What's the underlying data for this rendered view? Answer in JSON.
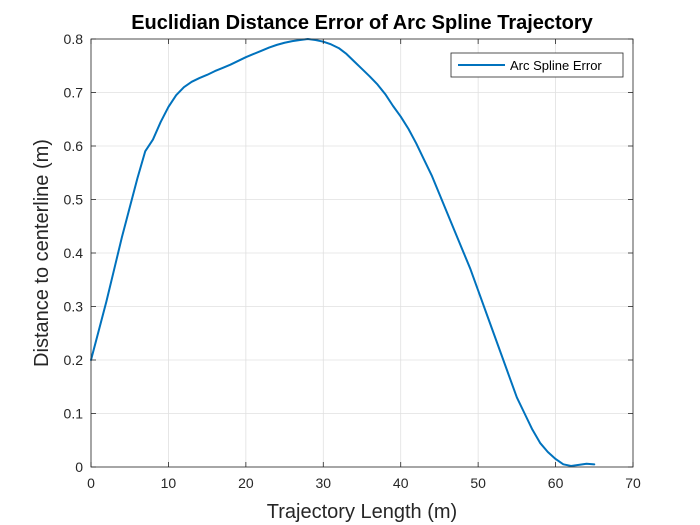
{
  "chart_data": {
    "type": "line",
    "title": "Euclidian Distance Error of Arc Spline Trajectory",
    "xlabel": "Trajectory Length (m)",
    "ylabel": "Distance to centerline (m)",
    "xlim": [
      0,
      70
    ],
    "ylim": [
      0,
      0.8
    ],
    "xticks": [
      0,
      10,
      20,
      30,
      40,
      50,
      60,
      70
    ],
    "xtick_labels": [
      "0",
      "10",
      "20",
      "30",
      "40",
      "50",
      "60",
      "70"
    ],
    "yticks": [
      0,
      0.1,
      0.2,
      0.3,
      0.4,
      0.5,
      0.6,
      0.7,
      0.8
    ],
    "ytick_labels": [
      "0",
      "0.1",
      "0.2",
      "0.3",
      "0.4",
      "0.5",
      "0.6",
      "0.7",
      "0.8"
    ],
    "grid": true,
    "legend_position": "top-right",
    "series": [
      {
        "name": "Arc Spline Error",
        "color": "#0072BD",
        "x": [
          0,
          1,
          2,
          3,
          4,
          5,
          6,
          7,
          8,
          9,
          10,
          11,
          12,
          13,
          14,
          15,
          16,
          17,
          18,
          19,
          20,
          21,
          22,
          23,
          24,
          25,
          26,
          27,
          28,
          29,
          30,
          31,
          32,
          33,
          34,
          35,
          36,
          37,
          38,
          39,
          40,
          41,
          42,
          43,
          44,
          45,
          46,
          47,
          48,
          49,
          50,
          51,
          52,
          53,
          54,
          55,
          56,
          57,
          58,
          59,
          60,
          61,
          62,
          63,
          64,
          65
        ],
        "y": [
          0.2,
          0.255,
          0.31,
          0.37,
          0.43,
          0.485,
          0.54,
          0.59,
          0.612,
          0.645,
          0.673,
          0.695,
          0.71,
          0.72,
          0.727,
          0.733,
          0.74,
          0.746,
          0.752,
          0.759,
          0.766,
          0.772,
          0.778,
          0.784,
          0.789,
          0.793,
          0.796,
          0.798,
          0.8,
          0.798,
          0.795,
          0.79,
          0.783,
          0.772,
          0.758,
          0.744,
          0.73,
          0.715,
          0.697,
          0.675,
          0.655,
          0.632,
          0.605,
          0.575,
          0.545,
          0.51,
          0.475,
          0.44,
          0.405,
          0.37,
          0.33,
          0.29,
          0.25,
          0.21,
          0.17,
          0.13,
          0.1,
          0.07,
          0.045,
          0.028,
          0.015,
          0.005,
          0.002,
          0.004,
          0.006,
          0.005
        ]
      }
    ]
  }
}
